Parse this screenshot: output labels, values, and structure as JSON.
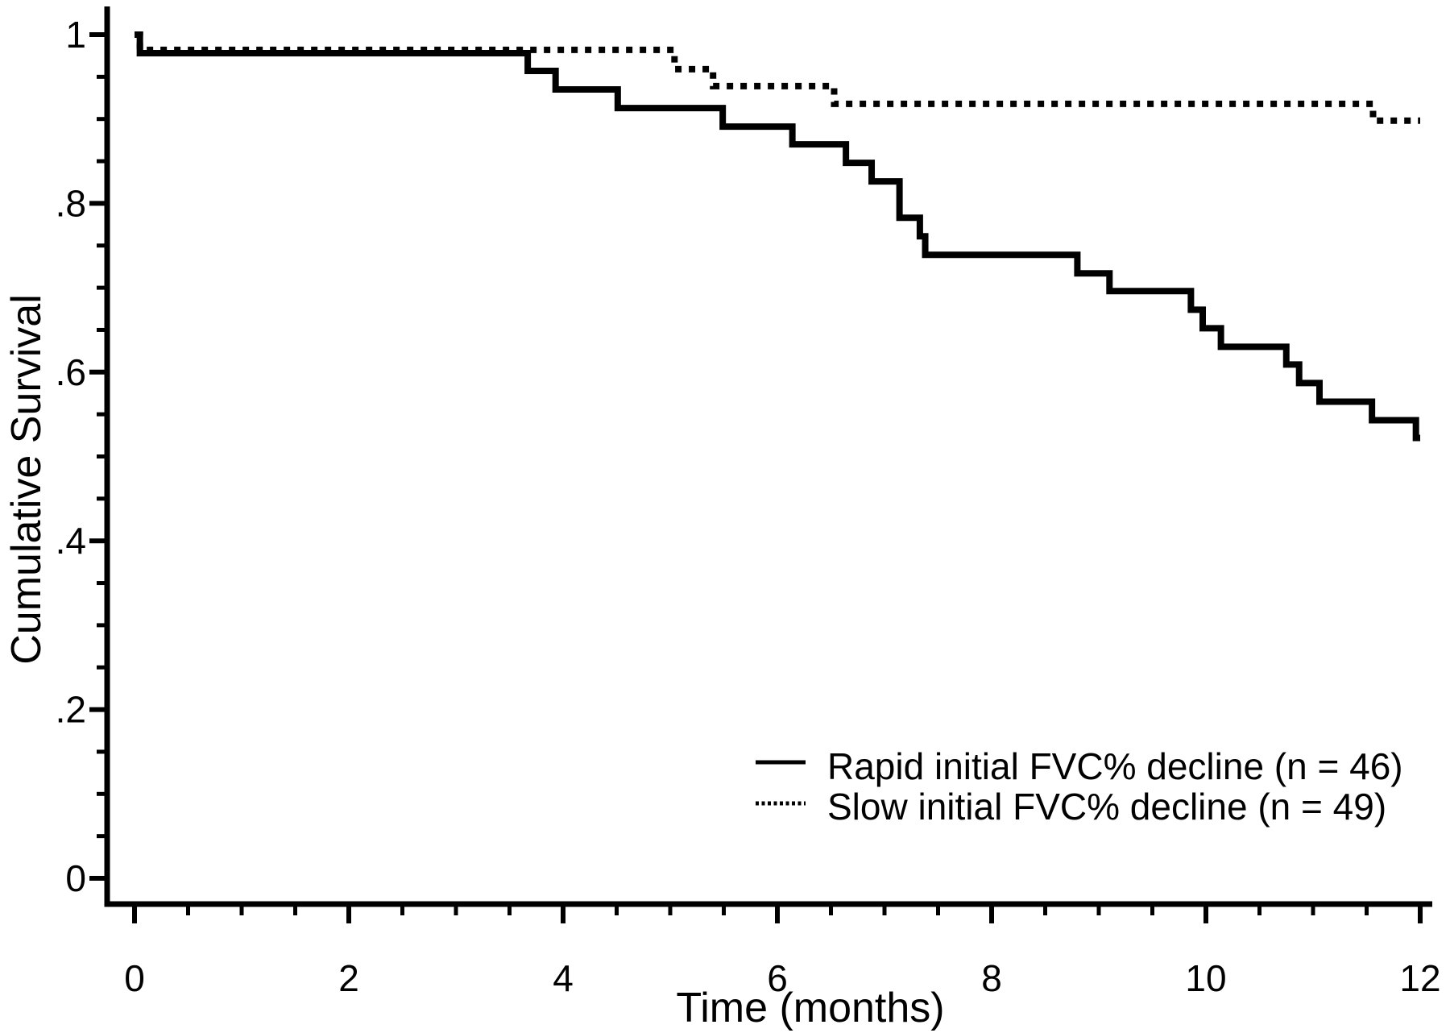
{
  "chart_data": {
    "type": "line",
    "subtype": "kaplan-meier-step",
    "title": "",
    "xlabel": "Time (months)",
    "ylabel": "Cumulative Survival",
    "xlim": [
      0,
      12
    ],
    "ylim": [
      0,
      1
    ],
    "grid": false,
    "x_major_ticks": [
      {
        "value": 0,
        "label": "0"
      },
      {
        "value": 2,
        "label": "2"
      },
      {
        "value": 4,
        "label": "4"
      },
      {
        "value": 6,
        "label": "6"
      },
      {
        "value": 8,
        "label": "8"
      },
      {
        "value": 10,
        "label": "10"
      },
      {
        "value": 12,
        "label": "12"
      }
    ],
    "x_minor_tick_step": 0.5,
    "y_major_ticks": [
      {
        "value": 1.0,
        "label": "1"
      },
      {
        "value": 0.8,
        "label": ".8"
      },
      {
        "value": 0.6,
        "label": ".6"
      },
      {
        "value": 0.4,
        "label": ".4"
      },
      {
        "value": 0.2,
        "label": ".2"
      },
      {
        "value": 0.0,
        "label": "0"
      }
    ],
    "y_minor_tick_step": 0.05,
    "legend_position": "lower-right",
    "line_color": "#000000",
    "series": [
      {
        "name": "Rapid initial FVC% decline (n = 46)",
        "n": 46,
        "line_style": "solid",
        "color": "#000000",
        "end_time": 12,
        "step_points": [
          [
            0,
            1.0
          ],
          [
            0.05,
            0.978
          ],
          [
            3.67,
            0.957
          ],
          [
            3.93,
            0.935
          ],
          [
            4.51,
            0.913
          ],
          [
            5.49,
            0.891
          ],
          [
            6.14,
            0.87
          ],
          [
            6.64,
            0.848
          ],
          [
            6.88,
            0.826
          ],
          [
            7.14,
            0.783
          ],
          [
            7.33,
            0.761
          ],
          [
            7.38,
            0.739
          ],
          [
            8.8,
            0.717
          ],
          [
            9.1,
            0.696
          ],
          [
            9.86,
            0.674
          ],
          [
            9.97,
            0.652
          ],
          [
            10.14,
            0.63
          ],
          [
            10.75,
            0.609
          ],
          [
            10.87,
            0.587
          ],
          [
            11.06,
            0.565
          ],
          [
            11.55,
            0.543
          ],
          [
            11.96,
            0.522
          ]
        ]
      },
      {
        "name": "Slow initial FVC% decline (n = 49)",
        "n": 49,
        "line_style": "dotted",
        "color": "#000000",
        "end_time": 12,
        "step_points": [
          [
            0,
            1.0
          ],
          [
            0.05,
            0.982
          ],
          [
            5.04,
            0.959
          ],
          [
            5.4,
            0.939
          ],
          [
            6.53,
            0.918
          ],
          [
            11.56,
            0.898
          ]
        ]
      }
    ]
  }
}
